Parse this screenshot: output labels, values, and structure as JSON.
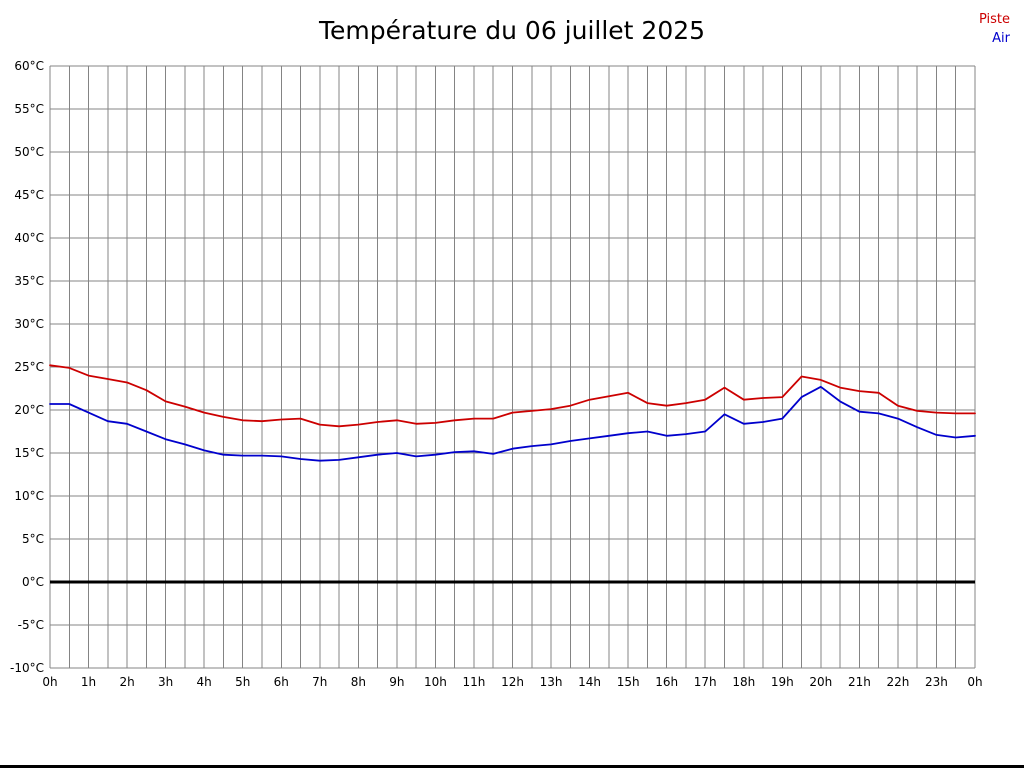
{
  "title": "Température du 06 juillet 2025",
  "legend": {
    "items": [
      {
        "label": "Piste",
        "color": "#cc0000"
      },
      {
        "label": "Air",
        "color": "#0000cc"
      }
    ]
  },
  "chart_data": {
    "type": "line",
    "title": "Température du 06 juillet 2025",
    "xlim": [
      0,
      24
    ],
    "ylim": [
      -10,
      60
    ],
    "y_tick_step": 5,
    "x_step_hours": 0.5,
    "x_grid_step": 0.5,
    "grid": true,
    "grid_color": "#848484",
    "zero_line": true,
    "zero_line_color": "#000000",
    "legend_position": "top-right",
    "x_tick_labels": [
      "0h",
      "1h",
      "2h",
      "3h",
      "4h",
      "5h",
      "6h",
      "7h",
      "8h",
      "9h",
      "10h",
      "11h",
      "12h",
      "13h",
      "14h",
      "15h",
      "16h",
      "17h",
      "18h",
      "19h",
      "20h",
      "21h",
      "22h",
      "23h",
      "0h"
    ],
    "y_tick_labels": [
      "60°C",
      "55°C",
      "50°C",
      "45°C",
      "40°C",
      "35°C",
      "30°C",
      "25°C",
      "20°C",
      "15°C",
      "10°C",
      "5°C",
      "0°C",
      "-5°C",
      "-10°C"
    ],
    "series": [
      {
        "name": "Piste",
        "color": "#cc0000",
        "values": [
          25.2,
          24.9,
          24.0,
          23.6,
          23.2,
          22.3,
          21.0,
          20.4,
          19.7,
          19.2,
          18.8,
          18.7,
          18.9,
          19.0,
          18.3,
          18.1,
          18.3,
          18.6,
          18.8,
          18.4,
          18.5,
          18.8,
          19.0,
          19.0,
          19.7,
          19.9,
          20.1,
          20.5,
          21.2,
          21.6,
          22.0,
          20.8,
          20.5,
          20.8,
          21.2,
          22.6,
          21.2,
          21.4,
          21.5,
          23.9,
          23.5,
          22.6,
          22.2,
          22.0,
          20.5,
          19.9,
          19.7,
          19.6,
          19.6
        ]
      },
      {
        "name": "Air",
        "color": "#0000cc",
        "values": [
          20.7,
          20.7,
          19.7,
          18.7,
          18.4,
          17.5,
          16.6,
          16.0,
          15.3,
          14.8,
          14.7,
          14.7,
          14.6,
          14.3,
          14.1,
          14.2,
          14.5,
          14.8,
          15.0,
          14.6,
          14.8,
          15.1,
          15.2,
          14.9,
          15.5,
          15.8,
          16.0,
          16.4,
          16.7,
          17.0,
          17.3,
          17.5,
          17.0,
          17.2,
          17.5,
          19.5,
          18.4,
          18.6,
          19.0,
          21.5,
          22.7,
          21.0,
          19.8,
          19.6,
          19.0,
          18.0,
          17.1,
          16.8,
          17.0
        ]
      }
    ]
  }
}
